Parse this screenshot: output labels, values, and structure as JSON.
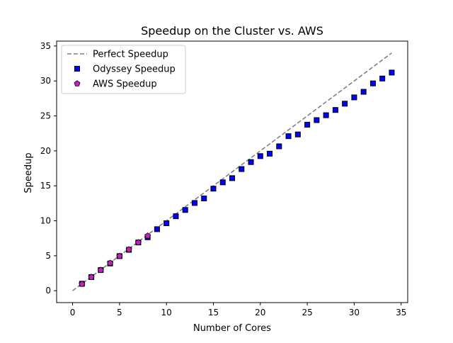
{
  "chart_data": {
    "type": "scatter",
    "title": "Speedup on the Cluster vs. AWS",
    "xlabel": "Number of Cores",
    "ylabel": "Speedup",
    "xlim": [
      -1.7,
      35.7
    ],
    "ylim": [
      -1.7,
      35.7
    ],
    "xticks": [
      0,
      5,
      10,
      15,
      20,
      25,
      30,
      35
    ],
    "yticks": [
      0,
      5,
      10,
      15,
      20,
      25,
      30,
      35
    ],
    "grid": false,
    "legend_position": "upper-left",
    "series": [
      {
        "name": "Perfect Speedup",
        "kind": "line",
        "style": "dashed",
        "color": "#808080",
        "x": [
          0,
          34
        ],
        "y": [
          0,
          34
        ]
      },
      {
        "name": "Odyssey Speedup",
        "kind": "scatter",
        "marker": "square",
        "color": "#0000ff",
        "x": [
          1,
          2,
          3,
          4,
          5,
          6,
          7,
          8,
          9,
          10,
          11,
          12,
          13,
          14,
          15,
          16,
          17,
          18,
          19,
          20,
          21,
          22,
          23,
          24,
          25,
          26,
          27,
          28,
          29,
          30,
          31,
          32,
          33,
          34
        ],
        "y": [
          1.0,
          1.95,
          2.95,
          3.9,
          4.95,
          5.85,
          6.9,
          7.65,
          8.8,
          9.65,
          10.65,
          11.55,
          12.55,
          13.2,
          14.6,
          15.5,
          16.1,
          17.4,
          18.4,
          19.25,
          19.6,
          20.65,
          22.1,
          22.35,
          23.75,
          24.4,
          25.1,
          25.85,
          26.75,
          27.65,
          28.45,
          29.65,
          30.35,
          31.2
        ]
      },
      {
        "name": "AWS Speedup",
        "kind": "scatter",
        "marker": "pentagon",
        "color": "#c020c0",
        "x": [
          1,
          2,
          3,
          4,
          5,
          6,
          7,
          8
        ],
        "y": [
          0.95,
          1.95,
          2.95,
          3.95,
          4.95,
          5.9,
          6.9,
          7.85
        ]
      }
    ]
  }
}
